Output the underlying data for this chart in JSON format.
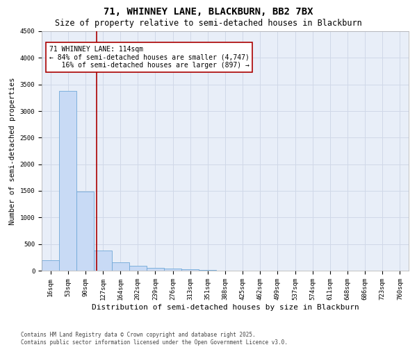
{
  "title1": "71, WHINNEY LANE, BLACKBURN, BB2 7BX",
  "title2": "Size of property relative to semi-detached houses in Blackburn",
  "xlabel": "Distribution of semi-detached houses by size in Blackburn",
  "ylabel": "Number of semi-detached properties",
  "categories": [
    "16sqm",
    "53sqm",
    "90sqm",
    "127sqm",
    "164sqm",
    "202sqm",
    "239sqm",
    "276sqm",
    "313sqm",
    "351sqm",
    "388sqm",
    "425sqm",
    "462sqm",
    "499sqm",
    "537sqm",
    "574sqm",
    "611sqm",
    "648sqm",
    "686sqm",
    "723sqm",
    "760sqm"
  ],
  "values": [
    200,
    3380,
    1490,
    375,
    155,
    90,
    58,
    38,
    20,
    13,
    5,
    0,
    0,
    0,
    0,
    0,
    0,
    0,
    0,
    0,
    0
  ],
  "bar_color": "#c8daf5",
  "bar_edge_color": "#6fa8d8",
  "vline_color": "#aa0000",
  "annotation_text": "71 WHINNEY LANE: 114sqm\n← 84% of semi-detached houses are smaller (4,747)\n   16% of semi-detached houses are larger (897) →",
  "annotation_box_color": "#aa0000",
  "ylim": [
    0,
    4500
  ],
  "yticks": [
    0,
    500,
    1000,
    1500,
    2000,
    2500,
    3000,
    3500,
    4000,
    4500
  ],
  "grid_color": "#d0d8e8",
  "bg_color": "#e8eef8",
  "footer": "Contains HM Land Registry data © Crown copyright and database right 2025.\nContains public sector information licensed under the Open Government Licence v3.0.",
  "title1_fontsize": 10,
  "title2_fontsize": 8.5,
  "xlabel_fontsize": 8,
  "ylabel_fontsize": 7.5,
  "tick_fontsize": 6.5,
  "annotation_fontsize": 7,
  "footer_fontsize": 5.5
}
